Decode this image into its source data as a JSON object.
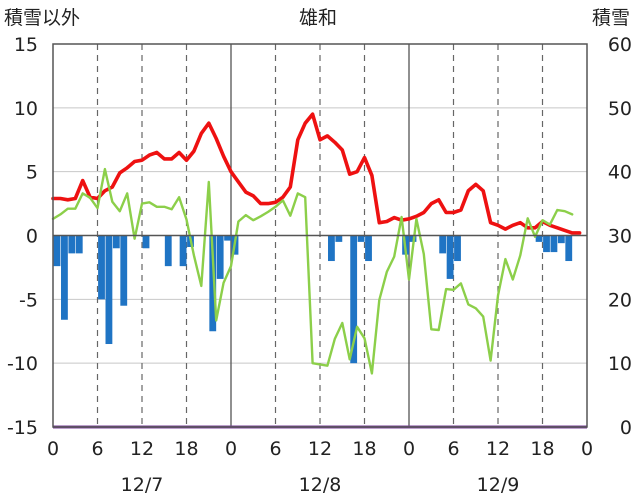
{
  "chart_data": {
    "type": "line+bar",
    "title": "雄和",
    "left_axis_label": "積雪以外",
    "right_axis_label": "積雪",
    "left_ylim": [
      -15,
      15
    ],
    "left_ticks": [
      15,
      10,
      5,
      0,
      -5,
      -10,
      -15
    ],
    "right_ylim": [
      0,
      60
    ],
    "right_ticks": [
      60,
      50,
      40,
      30,
      20,
      10,
      0
    ],
    "x_tick_labels": [
      "0",
      "6",
      "12",
      "18",
      "0",
      "6",
      "12",
      "18",
      "0",
      "6",
      "12",
      "18",
      "0"
    ],
    "date_labels": [
      "12/7",
      "12/8",
      "12/9"
    ],
    "xlim_hours": [
      0,
      72
    ],
    "colors": {
      "temperature": "#ee1111",
      "snow_depth": "#8ccf4a",
      "precipitation": "#1f74c4",
      "baseline": "#7a3f9a",
      "grid": "#555555"
    },
    "series": [
      {
        "key": "temperature",
        "axis": "left",
        "hours": [
          0,
          1,
          2,
          3,
          4,
          5,
          6,
          7,
          8,
          9,
          10,
          11,
          12,
          13,
          14,
          15,
          16,
          17,
          18,
          19,
          20,
          21,
          22,
          23,
          24,
          25,
          26,
          27,
          28,
          29,
          30,
          31,
          32,
          33,
          34,
          35,
          36,
          37,
          38,
          39,
          40,
          41,
          42,
          43,
          44,
          45,
          46,
          47,
          48,
          49,
          50,
          51,
          52,
          53,
          54,
          55,
          56,
          57,
          58,
          59,
          60,
          61,
          62,
          63,
          64,
          65,
          66,
          67,
          68,
          69,
          70,
          71,
          72
        ],
        "values": [
          2.9,
          2.9,
          2.8,
          2.9,
          4.3,
          3.0,
          2.9,
          3.5,
          3.8,
          4.9,
          5.3,
          5.8,
          5.9,
          6.3,
          6.5,
          6.0,
          6.0,
          6.5,
          5.9,
          6.6,
          8.0,
          8.8,
          7.6,
          6.2,
          5.0,
          4.2,
          3.4,
          3.1,
          2.5,
          2.5,
          2.6,
          3.0,
          3.8,
          7.5,
          8.8,
          9.5,
          7.5,
          7.8,
          7.3,
          6.7,
          4.8,
          5.0,
          6.1,
          4.7,
          1.0,
          1.1,
          1.4,
          1.2,
          1.3,
          1.5,
          1.8,
          2.5,
          2.8,
          1.8,
          1.8,
          2.0,
          3.5,
          4.0,
          3.5,
          1.0,
          0.8,
          0.5,
          0.8,
          1.0,
          0.6,
          0.6,
          1.1,
          0.8,
          0.6,
          0.4,
          0.2,
          0.2,
          null
        ]
      },
      {
        "key": "snow_depth",
        "axis": "right",
        "hours": [
          0,
          1,
          2,
          3,
          4,
          5,
          6,
          7,
          8,
          9,
          10,
          11,
          12,
          13,
          14,
          15,
          16,
          17,
          18,
          19,
          20,
          21,
          22,
          23,
          24,
          25,
          26,
          27,
          28,
          29,
          30,
          31,
          32,
          33,
          34,
          35,
          36,
          37,
          38,
          39,
          40,
          41,
          42,
          43,
          44,
          45,
          46,
          47,
          48,
          49,
          50,
          51,
          52,
          53,
          54,
          55,
          56,
          57,
          58,
          59,
          60,
          61,
          62,
          63,
          64,
          65,
          66,
          67,
          68,
          69,
          70,
          71,
          72
        ],
        "values": [
          32.6,
          33.3,
          34.2,
          34.2,
          36.6,
          35.9,
          34.3,
          40.4,
          35.3,
          33.8,
          36.6,
          29.5,
          35.0,
          35.2,
          34.5,
          34.5,
          34.1,
          36.0,
          32.5,
          26.9,
          22.1,
          38.4,
          16.7,
          22.6,
          25.2,
          32.2,
          33.2,
          32.4,
          33.0,
          33.7,
          34.5,
          35.5,
          33.1,
          36.6,
          36.0,
          10.0,
          9.8,
          9.6,
          13.8,
          16.3,
          10.6,
          15.7,
          13.9,
          8.4,
          19.9,
          24.3,
          26.7,
          32.9,
          23.1,
          32.6,
          27.1,
          15.3,
          15.2,
          21.6,
          21.5,
          22.5,
          19.2,
          18.6,
          17.3,
          10.4,
          20.6,
          26.3,
          23.1,
          26.9,
          32.7,
          29.8,
          32.4,
          31.7,
          34.0,
          33.8,
          33.3,
          null,
          null
        ]
      },
      {
        "key": "precipitation",
        "axis": "left",
        "type": "bar",
        "bars": [
          {
            "h": 1,
            "v": -2.4
          },
          {
            "h": 2,
            "v": -6.6
          },
          {
            "h": 3,
            "v": -1.4
          },
          {
            "h": 4,
            "v": -1.4
          },
          {
            "h": 7,
            "v": -5.0
          },
          {
            "h": 8,
            "v": -8.5
          },
          {
            "h": 9,
            "v": -1.0
          },
          {
            "h": 10,
            "v": -5.5
          },
          {
            "h": 13,
            "v": -1.0
          },
          {
            "h": 16,
            "v": -2.4
          },
          {
            "h": 18,
            "v": -2.4
          },
          {
            "h": 19,
            "v": -0.9
          },
          {
            "h": 22,
            "v": -7.5
          },
          {
            "h": 23,
            "v": -3.4
          },
          {
            "h": 24,
            "v": -0.4
          },
          {
            "h": 25,
            "v": -1.5
          },
          {
            "h": 38,
            "v": -2.0
          },
          {
            "h": 39,
            "v": -0.5
          },
          {
            "h": 41,
            "v": -10.0
          },
          {
            "h": 42,
            "v": -0.5
          },
          {
            "h": 43,
            "v": -2.0
          },
          {
            "h": 48,
            "v": -1.5
          },
          {
            "h": 49,
            "v": -0.5
          },
          {
            "h": 53,
            "v": -1.4
          },
          {
            "h": 54,
            "v": -3.4
          },
          {
            "h": 55,
            "v": -2.0
          },
          {
            "h": 66,
            "v": -0.5
          },
          {
            "h": 67,
            "v": -1.3
          },
          {
            "h": 68,
            "v": -1.3
          },
          {
            "h": 69,
            "v": -0.6
          },
          {
            "h": 70,
            "v": -2.0
          }
        ]
      }
    ]
  }
}
